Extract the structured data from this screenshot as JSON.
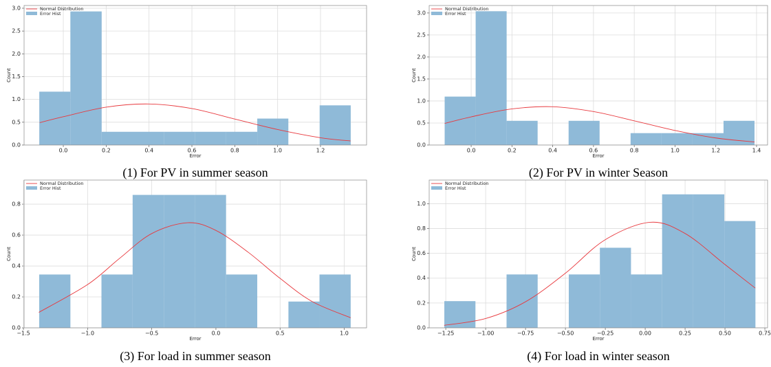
{
  "chart_data": [
    {
      "type": "histogram",
      "caption": "(1) For PV in summer season",
      "xlabel": "Error",
      "ylabel": "Count",
      "name": "Error Hist",
      "color": "#8fbad8",
      "bins": [
        -0.112,
        0.033,
        0.179,
        0.324,
        0.469,
        0.615,
        0.76,
        0.905,
        1.05,
        1.196,
        1.341
      ],
      "values": [
        1.17,
        2.93,
        0.29,
        0.29,
        0.29,
        0.29,
        0.29,
        0.58,
        0,
        0.87
      ],
      "line": {
        "name": "Normal Distribution",
        "color": "#e8383d",
        "x": [
          -0.11,
          0.0,
          0.2,
          0.4,
          0.6,
          0.8,
          1.0,
          1.2,
          1.34
        ],
        "values": [
          0.49,
          0.62,
          0.83,
          0.9,
          0.8,
          0.57,
          0.34,
          0.16,
          0.09
        ]
      },
      "xlim": [
        -0.183,
        1.415
      ],
      "ylim": [
        0,
        3.06
      ],
      "xticks": [
        {
          "value": 0,
          "label": "0.0"
        },
        0.2,
        0.4,
        0.6,
        0.8,
        {
          "value": 1,
          "label": "1.0"
        },
        1.2
      ],
      "yticks": [
        {
          "value": 0,
          "label": "0.0"
        },
        0.5,
        {
          "value": 1,
          "label": "1.0"
        },
        1.5,
        {
          "value": 2,
          "label": "2.0"
        },
        2.5,
        {
          "value": 3,
          "label": "3.0"
        }
      ],
      "grid": true,
      "legend": "upper left"
    },
    {
      "type": "histogram",
      "caption": "(2) For PV in winter Season",
      "xlabel": "Error",
      "ylabel": "Count",
      "name": "Error Hist",
      "color": "#8fbad8",
      "bins": [
        -0.13,
        0.022,
        0.174,
        0.326,
        0.478,
        0.63,
        0.782,
        0.934,
        1.086,
        1.238,
        1.39
      ],
      "values": [
        1.1,
        3.04,
        0.55,
        0,
        0.55,
        0,
        0.27,
        0.27,
        0.27,
        0.55
      ],
      "line": {
        "name": "Normal Distribution",
        "color": "#e8383d",
        "x": [
          -0.13,
          0.0,
          0.2,
          0.4,
          0.6,
          0.8,
          1.0,
          1.2,
          1.39
        ],
        "values": [
          0.49,
          0.64,
          0.82,
          0.87,
          0.76,
          0.55,
          0.33,
          0.16,
          0.07
        ]
      },
      "xlim": [
        -0.206,
        1.454
      ],
      "ylim": [
        0,
        3.17
      ],
      "xticks": [
        {
          "value": 0,
          "label": "0.0"
        },
        0.2,
        0.4,
        0.6,
        0.8,
        {
          "value": 1,
          "label": "1.0"
        },
        1.2,
        1.4
      ],
      "yticks": [
        {
          "value": 0,
          "label": "0.0"
        },
        0.5,
        {
          "value": 1,
          "label": "1.0"
        },
        1.5,
        {
          "value": 2,
          "label": "2.0"
        },
        2.5,
        {
          "value": 3,
          "label": "3.0"
        }
      ],
      "grid": true,
      "legend": "upper left"
    },
    {
      "type": "histogram",
      "caption": "(3) For load in summer season",
      "xlabel": "Error",
      "ylabel": "Count",
      "name": "Error Hist",
      "color": "#8fbad8",
      "bins": [
        -1.377,
        -1.134,
        -0.892,
        -0.649,
        -0.406,
        -0.164,
        0.079,
        0.322,
        0.565,
        0.807,
        1.05
      ],
      "values": [
        0.345,
        0,
        0.345,
        0.86,
        0.86,
        0.86,
        0.345,
        0,
        0.17,
        0.345
      ],
      "line": {
        "name": "Normal Distribution",
        "color": "#e8383d",
        "x": [
          -1.38,
          -1.0,
          -0.75,
          -0.5,
          -0.22,
          0.0,
          0.25,
          0.5,
          0.75,
          1.05
        ],
        "values": [
          0.1,
          0.28,
          0.45,
          0.61,
          0.68,
          0.63,
          0.49,
          0.32,
          0.17,
          0.065
        ]
      },
      "xlim": [
        -1.495,
        1.174
      ],
      "ylim": [
        0,
        0.956
      ],
      "xticks": [
        {
          "value": -1.5,
          "label": "−1.5"
        },
        {
          "value": -1,
          "label": "−1.0"
        },
        {
          "value": -0.5,
          "label": "−0.5"
        },
        {
          "value": 0,
          "label": "0.0"
        },
        0.5,
        {
          "value": 1,
          "label": "1.0"
        }
      ],
      "yticks": [
        {
          "value": 0,
          "label": "0.0"
        },
        0.2,
        0.4,
        0.6,
        0.8
      ],
      "grid": true,
      "legend": "upper left"
    },
    {
      "type": "histogram",
      "caption": "(4) For load in winter season",
      "xlabel": "Error",
      "ylabel": "Count",
      "name": "Error Hist",
      "color": "#8fbad8",
      "bins": [
        -1.259,
        -1.064,
        -0.869,
        -0.674,
        -0.479,
        -0.284,
        -0.089,
        0.106,
        0.301,
        0.496,
        0.691
      ],
      "values": [
        0.215,
        0,
        0.43,
        0,
        0.43,
        0.645,
        0.43,
        1.075,
        1.075,
        0.86
      ],
      "line": {
        "name": "Normal Distribution",
        "color": "#e8383d",
        "x": [
          -1.26,
          -1.0,
          -0.75,
          -0.5,
          -0.25,
          0.03,
          0.25,
          0.5,
          0.69
        ],
        "values": [
          0.02,
          0.075,
          0.21,
          0.44,
          0.71,
          0.85,
          0.76,
          0.51,
          0.32
        ]
      },
      "xlim": [
        -1.354,
        0.767
      ],
      "ylim": [
        0,
        1.19
      ],
      "xticks": [
        {
          "value": -1.25,
          "label": "−1.25"
        },
        {
          "value": -1,
          "label": "−1.00"
        },
        {
          "value": -0.75,
          "label": "−0.75"
        },
        {
          "value": -0.5,
          "label": "−0.50"
        },
        {
          "value": -0.25,
          "label": "−0.25"
        },
        {
          "value": 0,
          "label": "0.00"
        },
        0.25,
        {
          "value": 0.5,
          "label": "0.50"
        },
        0.75
      ],
      "yticks": [
        {
          "value": 0,
          "label": "0.0"
        },
        0.2,
        0.4,
        0.6,
        0.8,
        {
          "value": 1,
          "label": "1.0"
        }
      ],
      "grid": true,
      "legend": "upper left"
    }
  ]
}
